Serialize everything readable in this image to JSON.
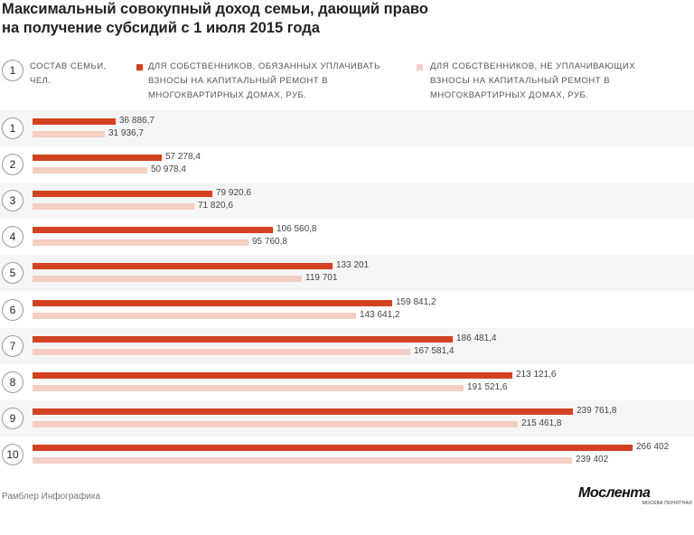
{
  "title_lines": [
    "Максимальный совокупный доход семьи, дающий право",
    "на получение субсидий с 1 июля 2015 года"
  ],
  "legend": {
    "icon_number": "1",
    "family_label": "Состав семьи, чел.",
    "series1_label": "Для собственников, обязанных уплачивать взносы на капитальный ремонт в многоквартирных домах, руб.",
    "series2_label": "Для собственников, не уплачивающих взносы на капитальный ремонт в многоквартирных домах, руб."
  },
  "chart_data": {
    "type": "bar",
    "orientation": "horizontal",
    "categories": [
      "1",
      "2",
      "3",
      "4",
      "5",
      "6",
      "7",
      "8",
      "9",
      "10"
    ],
    "series": [
      {
        "name": "Для собственников, обязанных уплачивать взносы на капитальный ремонт в многоквартирных домах, руб.",
        "color": "#d14221",
        "values": [
          36886.7,
          57278.4,
          79920.6,
          106560.8,
          133201,
          159841.2,
          186481.4,
          213121.6,
          239761.8,
          266402
        ],
        "labels": [
          "36 886,7",
          "57 278,4",
          "79 920,6",
          "106 560,8",
          "133 201",
          "159 841,2",
          "186 481,4",
          "213 121,6",
          "239 761,8",
          "266 402"
        ]
      },
      {
        "name": "Для собственников, не уплачивающих взносы на капитальный ремонт в многоквартирных домах, руб.",
        "color": "#f3cfc3",
        "values": [
          31936.7,
          50978.4,
          71820.6,
          95760.8,
          119701,
          143641.2,
          167581.4,
          191521.6,
          215461.8,
          239402
        ],
        "labels": [
          "31 936,7",
          "50 978,4",
          "71 820,6",
          "95 760,8",
          "119 701",
          "143 641,2",
          "167 581,4",
          "191 521,6",
          "215 461,8",
          "239 402"
        ]
      }
    ],
    "grid": false
  },
  "source": "Рамблер Инфографика",
  "logo": {
    "name": "Мослента",
    "subtitle": "москва понятная"
  }
}
